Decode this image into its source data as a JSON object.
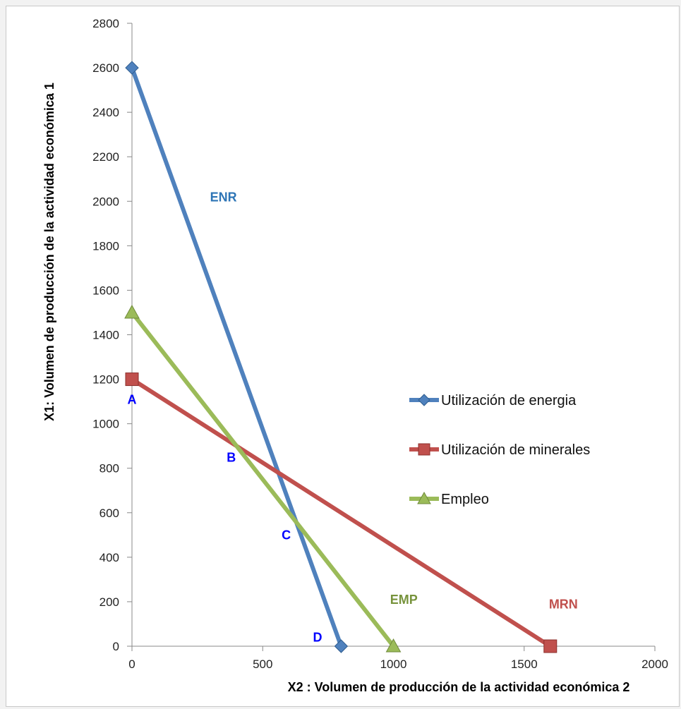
{
  "chart_data": {
    "type": "line",
    "xlabel": "X2 : Volumen de producción de la actividad económica 2",
    "ylabel": "X1: Volumen de producción de la actividad económica 1",
    "xlim": [
      0,
      2000
    ],
    "ylim": [
      0,
      2800
    ],
    "xticks": [
      0,
      500,
      1000,
      1500,
      2000
    ],
    "yticks": [
      0,
      200,
      400,
      600,
      800,
      1000,
      1200,
      1400,
      1600,
      1800,
      2000,
      2200,
      2400,
      2600,
      2800
    ],
    "grid": false,
    "legend_position": "right",
    "series": [
      {
        "name": "Utilización de energia",
        "color": "#4F81BD",
        "marker": "diamond",
        "x": [
          0,
          800
        ],
        "y": [
          2600,
          0
        ]
      },
      {
        "name": "Utilización de minerales",
        "color": "#C0504D",
        "marker": "square",
        "x": [
          0,
          1600
        ],
        "y": [
          1200,
          0
        ]
      },
      {
        "name": "Empleo",
        "color": "#9BBB59",
        "marker": "triangle",
        "x": [
          0,
          1000
        ],
        "y": [
          1500,
          0
        ]
      }
    ],
    "annotations": [
      {
        "text": "ENR",
        "x": 350,
        "y": 2000,
        "color": "#2E75B6"
      },
      {
        "text": "MRN",
        "x": 1650,
        "y": 170,
        "color": "#C0504D"
      },
      {
        "text": "EMP",
        "x": 1040,
        "y": 190,
        "color": "#77933C"
      },
      {
        "text": "A",
        "x": 0,
        "y": 1090,
        "color": "#0000FF"
      },
      {
        "text": "B",
        "x": 380,
        "y": 830,
        "color": "#0000FF"
      },
      {
        "text": "C",
        "x": 590,
        "y": 480,
        "color": "#0000FF"
      },
      {
        "text": "D",
        "x": 710,
        "y": 20,
        "color": "#0000FF"
      }
    ]
  }
}
